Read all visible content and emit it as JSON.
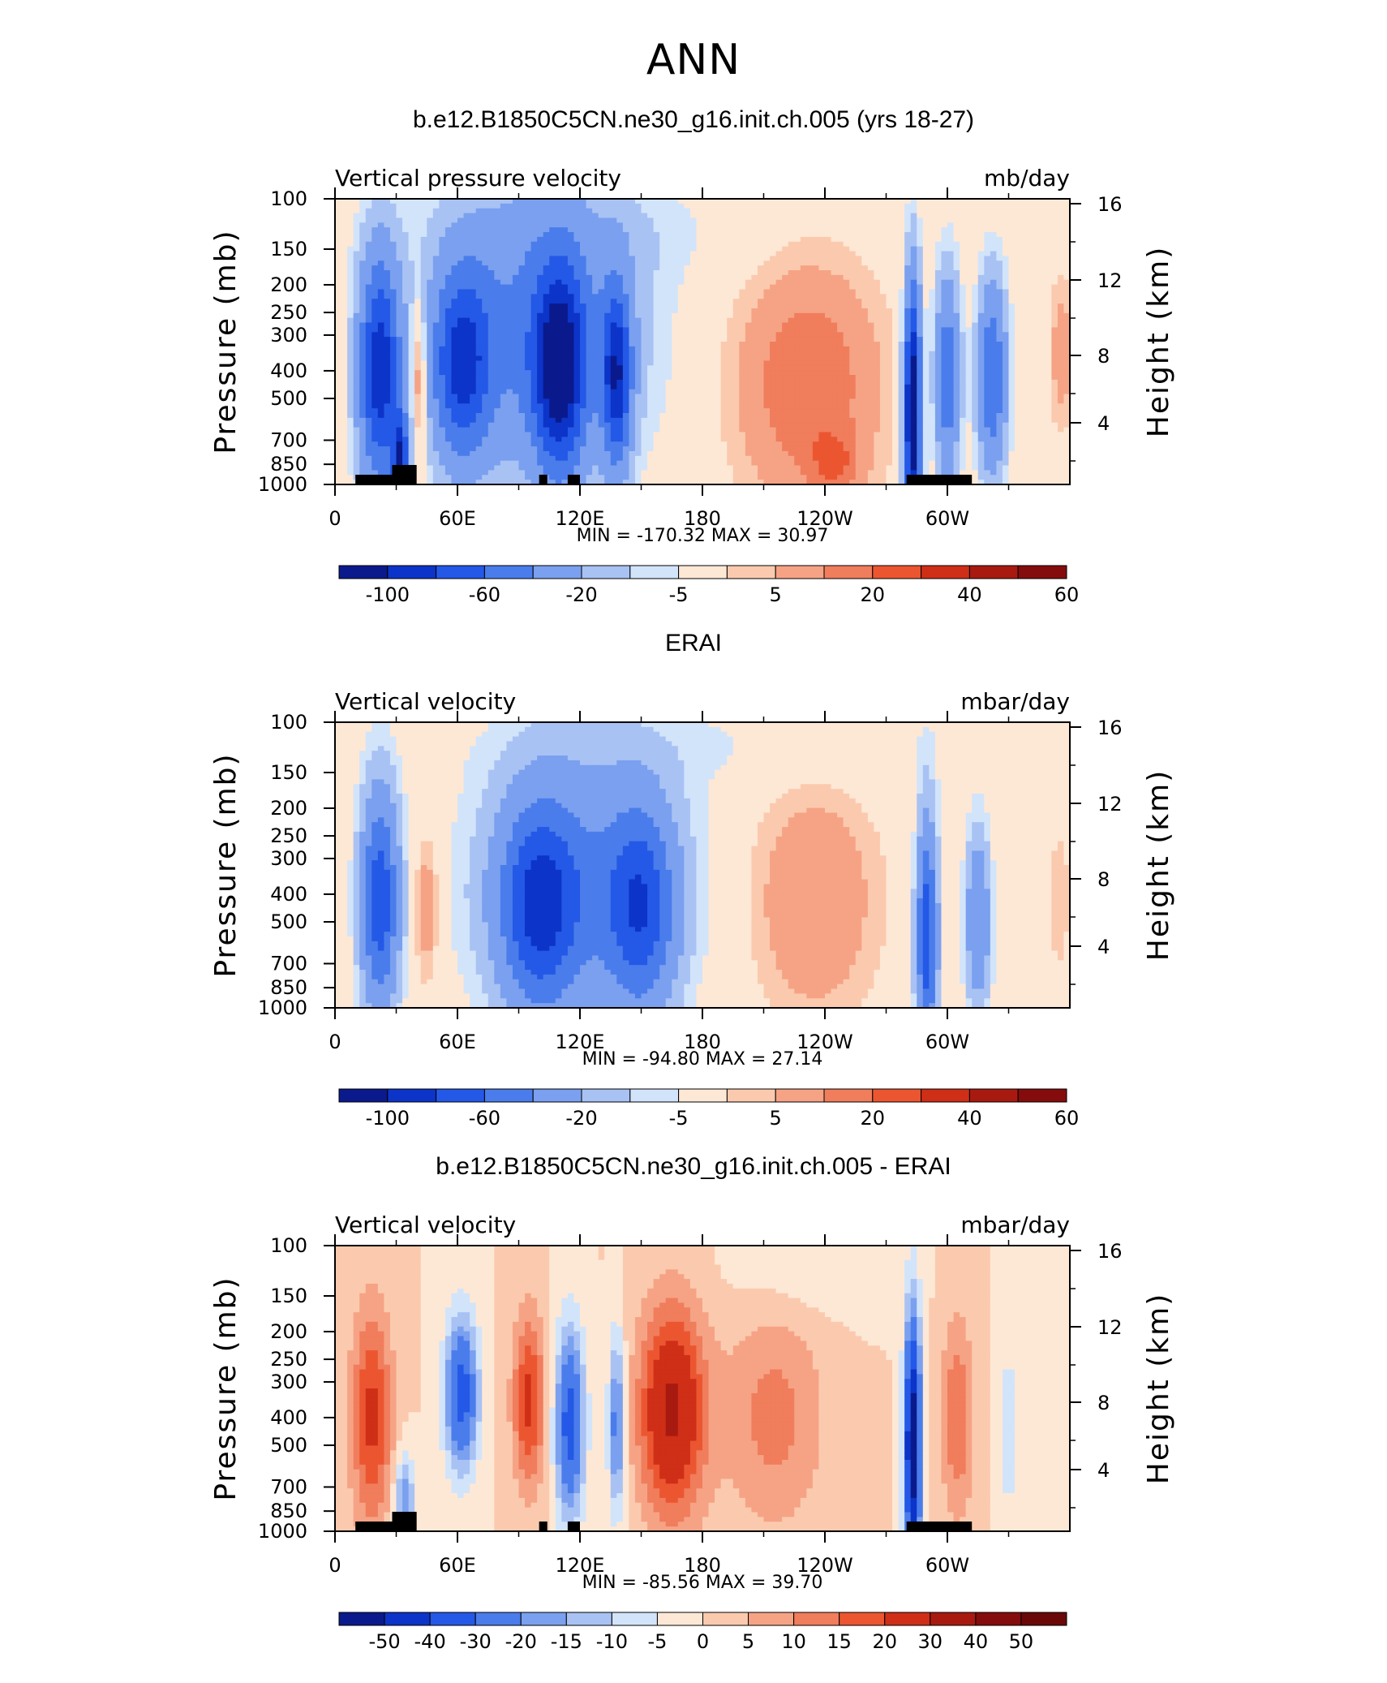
{
  "main_title": "ANN",
  "chart_data": [
    {
      "type": "heatmap",
      "title": "b.e12.B1850C5CN.ne30_g16.init.ch.005 (yrs 18-27)",
      "variable_label": "Vertical pressure velocity",
      "units": "mb/day",
      "ylabel": "Pressure (mb)",
      "ylabel_right": "Height (km)",
      "x_ticks": [
        "0",
        "60E",
        "120E",
        "180",
        "120W",
        "60W"
      ],
      "y_ticks": [
        "100",
        "150",
        "200",
        "250",
        "300",
        "400",
        "500",
        "700",
        "850",
        "1000"
      ],
      "height_ticks": [
        "16",
        "12",
        "8",
        "4"
      ],
      "stats": {
        "min_label": "MIN =",
        "min": "-170.32",
        "max_label": "MAX =",
        "max": "30.97"
      },
      "colorbar_labels": [
        "-100",
        "-60",
        "-20",
        "-5",
        "5",
        "20",
        "40",
        "60"
      ],
      "colorbar_colors": [
        "#0a1a8c",
        "#0c34c8",
        "#2458e6",
        "#4a7ceb",
        "#7aa0ef",
        "#a9c2f4",
        "#d2e4fa",
        "#fde8d6",
        "#fbcaae",
        "#f6a385",
        "#f07d5c",
        "#eb5630",
        "#cf2e17",
        "#a81a10",
        "#850c0c"
      ],
      "ylim": [
        1000,
        100
      ],
      "xlim": [
        0,
        360
      ]
    },
    {
      "type": "heatmap",
      "title": "ERAI",
      "variable_label": "Vertical velocity",
      "units": "mbar/day",
      "ylabel": "Pressure (mb)",
      "ylabel_right": "Height (km)",
      "x_ticks": [
        "0",
        "60E",
        "120E",
        "180",
        "120W",
        "60W"
      ],
      "y_ticks": [
        "100",
        "150",
        "200",
        "250",
        "300",
        "400",
        "500",
        "700",
        "850",
        "1000"
      ],
      "height_ticks": [
        "16",
        "12",
        "8",
        "4"
      ],
      "stats": {
        "min_label": "MIN =",
        "min": "-94.80",
        "max_label": "MAX =",
        "max": "27.14"
      },
      "colorbar_labels": [
        "-100",
        "-60",
        "-20",
        "-5",
        "5",
        "20",
        "40",
        "60"
      ],
      "colorbar_colors": [
        "#0a1a8c",
        "#0c34c8",
        "#2458e6",
        "#4a7ceb",
        "#7aa0ef",
        "#a9c2f4",
        "#d2e4fa",
        "#fde8d6",
        "#fbcaae",
        "#f6a385",
        "#f07d5c",
        "#eb5630",
        "#cf2e17",
        "#a81a10",
        "#850c0c"
      ],
      "ylim": [
        1000,
        100
      ],
      "xlim": [
        0,
        360
      ]
    },
    {
      "type": "heatmap",
      "title": "b.e12.B1850C5CN.ne30_g16.init.ch.005 - ERAI",
      "variable_label": "Vertical velocity",
      "units": "mbar/day",
      "ylabel": "Pressure (mb)",
      "ylabel_right": "Height (km)",
      "x_ticks": [
        "0",
        "60E",
        "120E",
        "180",
        "120W",
        "60W"
      ],
      "y_ticks": [
        "100",
        "150",
        "200",
        "250",
        "300",
        "400",
        "500",
        "700",
        "850",
        "1000"
      ],
      "height_ticks": [
        "16",
        "12",
        "8",
        "4"
      ],
      "stats": {
        "min_label": "MIN =",
        "min": "-85.56",
        "max_label": "MAX =",
        "max": "39.70"
      },
      "colorbar_labels": [
        "-50",
        "-40",
        "-30",
        "-20",
        "-15",
        "-10",
        "-5",
        "0",
        "5",
        "10",
        "15",
        "20",
        "30",
        "40",
        "50"
      ],
      "colorbar_colors": [
        "#0a1a8c",
        "#0c34c8",
        "#2458e6",
        "#4a7ceb",
        "#7aa0ef",
        "#a9c2f4",
        "#d2e4fa",
        "#fde8d6",
        "#fbcaae",
        "#f6a385",
        "#f07d5c",
        "#eb5630",
        "#cf2e17",
        "#a81a10",
        "#850c0c",
        "#6a0808"
      ],
      "ylim": [
        1000,
        100
      ],
      "xlim": [
        0,
        360
      ]
    }
  ]
}
